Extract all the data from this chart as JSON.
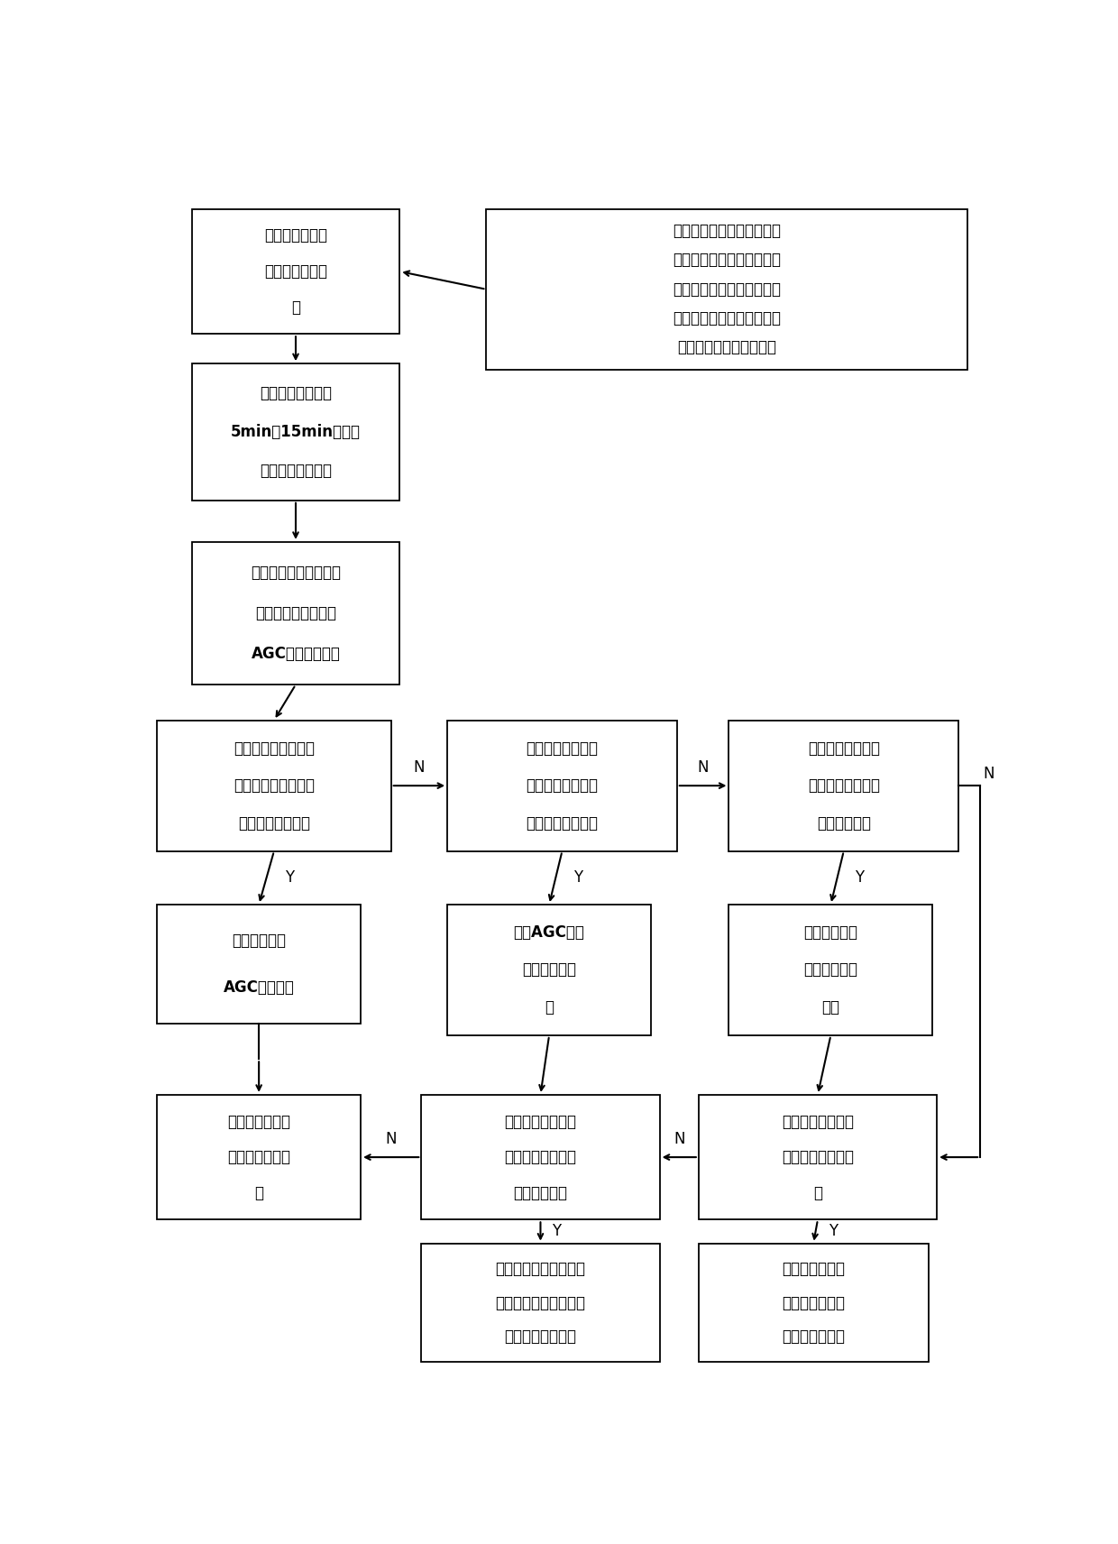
{
  "bg_color": "#ffffff",
  "fig_width": 12.4,
  "fig_height": 17.12,
  "fs": 12,
  "B1": [
    0.06,
    0.875,
    0.24,
    0.105
  ],
  "B2": [
    0.4,
    0.845,
    0.555,
    0.135
  ],
  "B3": [
    0.06,
    0.735,
    0.24,
    0.115
  ],
  "B4": [
    0.06,
    0.58,
    0.24,
    0.12
  ],
  "B5": [
    0.02,
    0.44,
    0.27,
    0.11
  ],
  "B6": [
    0.355,
    0.44,
    0.265,
    0.11
  ],
  "B7": [
    0.68,
    0.44,
    0.265,
    0.11
  ],
  "B8": [
    0.02,
    0.295,
    0.235,
    0.1
  ],
  "B9": [
    0.355,
    0.285,
    0.235,
    0.11
  ],
  "B10": [
    0.68,
    0.285,
    0.235,
    0.11
  ],
  "B11": [
    0.02,
    0.13,
    0.235,
    0.105
  ],
  "B12": [
    0.325,
    0.13,
    0.275,
    0.105
  ],
  "B13": [
    0.645,
    0.13,
    0.275,
    0.105
  ],
  "B14": [
    0.325,
    0.01,
    0.275,
    0.1
  ],
  "B15": [
    0.645,
    0.01,
    0.265,
    0.1
  ],
  "texts": {
    "B1": "计算全网超短期\n的净负荷预测曲\n线",
    "B2": "获取调度口径的超短期全网\n总负荷和总风电出力预测曲\n线，获取调度辖区内各机组\n的运行状态和可调整量，获\n取联络线计划和安全边界",
    "B3": "计算净负荷曲线的\n5min和15min最大正\n（反）向波动数值",
    "B4": "分析系统各类资源的快\n速调节能力（主要是\nAGC的调节能力）",
    "B5": "判断系统的快速可调\n节能力是否满足净负\n荷曲线的平衡需求",
    "B6": "叠加其他机组可调\n节能力判断是否满\n足净负荷平衡需求",
    "B7": "叠加抽水蓄能的可\n调出力是否满足净\n负荷平衡需求",
    "B8": "输出需要动作\nAGC的调整量",
    "B9": "输出AGC及其\n他机组的分配\n量",
    "B10": "输出各机组的\n分配量和抽蓄\n出力",
    "B11": "启动系统的稳控\n装置达到电力平\n衡",
    "B12": "叠加联络线许可的\n调整量是否满足净\n负荷平衡需求",
    "B13": "叠加弃水弃风是否\n满足净负荷平衡需\n求",
    "B14": "输出各机组分配量、抽\n蓄出力、弃风弃水以及\n联络线许可调整量",
    "B15": "输出各机组的分\n配量、抽蓄出力\n以及弃风弃水量"
  },
  "bold_lines": {
    "B3": [
      1
    ],
    "B4": [
      2
    ],
    "B8": [
      1
    ],
    "B9": [
      0
    ]
  }
}
